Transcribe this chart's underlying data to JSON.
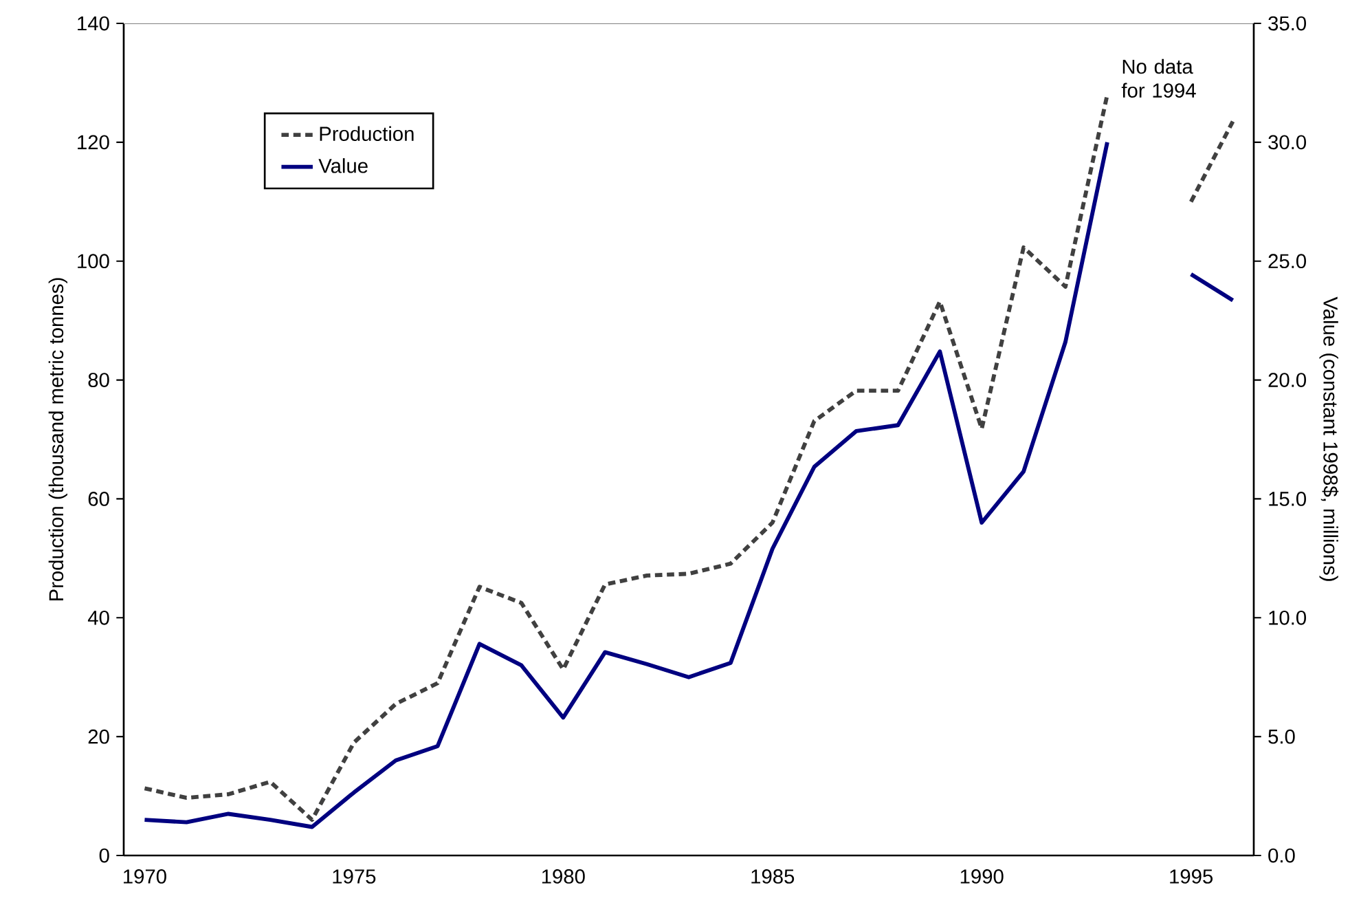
{
  "chart_data": {
    "type": "line",
    "categories": [
      "1970",
      null,
      null,
      null,
      null,
      "1975",
      null,
      null,
      null,
      null,
      "1980",
      null,
      null,
      null,
      null,
      "1985",
      null,
      null,
      null,
      null,
      "1990",
      null,
      null,
      null,
      null,
      "1995",
      null
    ],
    "series": [
      {
        "name": "Production",
        "color": "#404040",
        "line_style": "dashed",
        "values": [
          11.3,
          9.7,
          10.3,
          12.4,
          6,
          19,
          25.5,
          29,
          45.2,
          42.5,
          31.3,
          45.6,
          47.1,
          47.4,
          49.1,
          56,
          73.1,
          78.2,
          78.2,
          93.2,
          71.8,
          102.3,
          95.7,
          128,
          null,
          110,
          123.5
        ]
      },
      {
        "name": "Value",
        "color": "#000080",
        "line_style": "solid",
        "axis": "y2",
        "values": [
          1.5,
          1.4,
          1.75,
          1.5,
          1.2,
          2.65,
          4.0,
          4.6,
          8.9,
          8.0,
          5.8,
          8.55,
          8.05,
          7.5,
          8.1,
          12.9,
          16.35,
          17.85,
          18.1,
          21.2,
          14.0,
          16.15,
          21.6,
          30.0,
          null,
          24.45,
          23.35
        ]
      }
    ],
    "ylabel": "Production (thousand metric tonnes)",
    "y2label": "Value (constant 1998$, millions)",
    "ylim": [
      0,
      140
    ],
    "yticks": [
      0,
      20,
      40,
      60,
      80,
      100,
      120,
      140
    ],
    "y2lim": [
      0,
      35
    ],
    "y2ticks": [
      {
        "value": 0,
        "label": "0.0"
      },
      {
        "value": 5,
        "label": "5.0"
      },
      {
        "value": 10,
        "label": "10.0"
      },
      {
        "value": 15,
        "label": "15.0"
      },
      {
        "value": 20,
        "label": "20.0"
      },
      {
        "value": 25,
        "label": "25.0"
      },
      {
        "value": 30,
        "label": "30.0"
      },
      {
        "value": 35,
        "label": "35.0"
      }
    ],
    "legend": "top left",
    "grid": false,
    "annotations": [
      "No data for 1994"
    ]
  }
}
